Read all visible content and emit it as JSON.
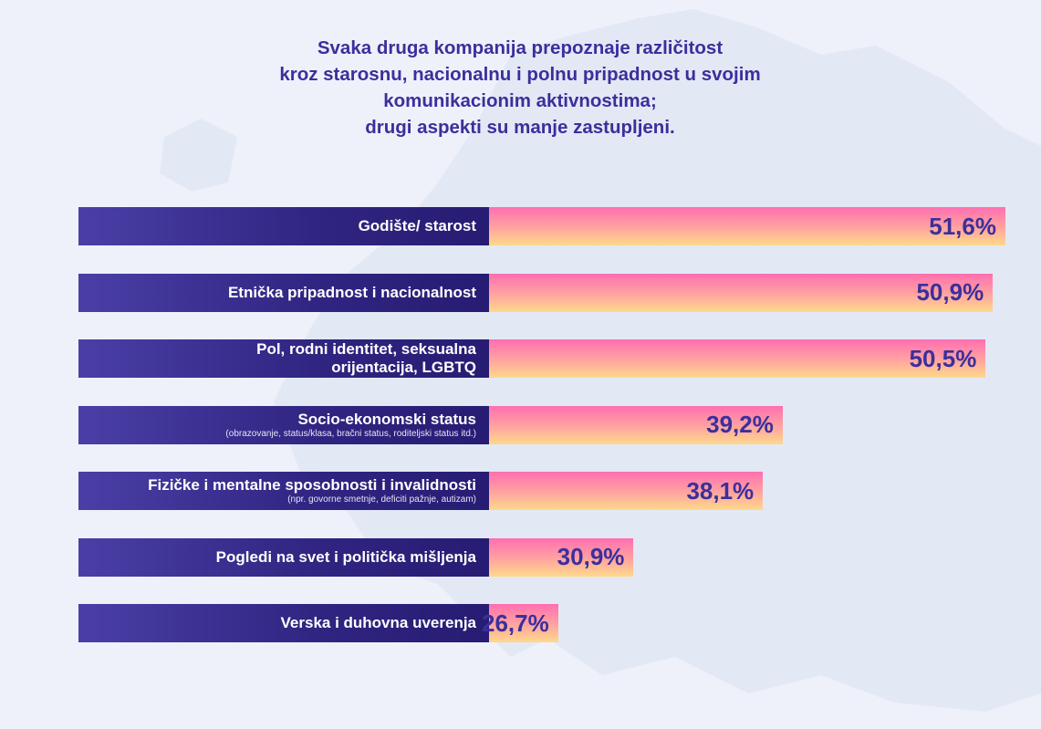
{
  "title": [
    "Svaka druga kompanija prepoznaje različitost",
    "kroz starosnu, nacionalnu i polnu pripadnost u svojim",
    "komunikacionim aktivnostima;",
    "drugi aspekti su manje zastupljeni."
  ],
  "colors": {
    "background": "#eef1fa",
    "map": "#e3e8f5",
    "label_bar": "#2f2480",
    "value_gradient_top": "#ff6fb0",
    "value_gradient_bottom": "#ffd98a",
    "title_text": "#3b2f9c"
  },
  "chart_data": {
    "type": "bar",
    "orientation": "horizontal",
    "title": "Svaka druga kompanija prepoznaje različitost kroz starosnu, nacionalnu i polnu pripadnost u svojim komunikacionim aktivnostima; drugi aspekti su manje zastupljeni.",
    "categories": [
      "Godište/ starost",
      "Etnička pripadnost i nacionalnost",
      "Pol, rodni identitet, seksualna orijentacija, LGBTQ",
      "Socio-ekonomski status",
      "Fizičke i mentalne sposobnosti i invalidnosti",
      "Pogledi na svet i politička mišljenja",
      "Verska i duhovna uverenja"
    ],
    "label_lines": [
      [
        "Godište/ starost"
      ],
      [
        "Etnička pripadnost i nacionalnost"
      ],
      [
        "Pol, rodni identitet, seksualna",
        "orijentacija, LGBTQ"
      ],
      [
        "Socio-ekonomski status"
      ],
      [
        "Fizičke i mentalne sposobnosti i invalidnosti"
      ],
      [
        "Pogledi na svet i politička mišljenja"
      ],
      [
        "Verska i duhovna uverenja"
      ]
    ],
    "sublabels": [
      "",
      "",
      "",
      "(obrazovanje, status/klasa, bračni status, roditeljski status itd.)",
      "(npr. govorne smetnje, deficiti pažnje, autizam)",
      "",
      ""
    ],
    "values": [
      51.6,
      50.9,
      50.5,
      39.2,
      38.1,
      30.9,
      26.7
    ],
    "value_labels": [
      "51,6%",
      "50,9%",
      "50,5%",
      "39,2%",
      "38,1%",
      "30,9%",
      "26,7%"
    ],
    "grid": false,
    "legend": "none"
  }
}
